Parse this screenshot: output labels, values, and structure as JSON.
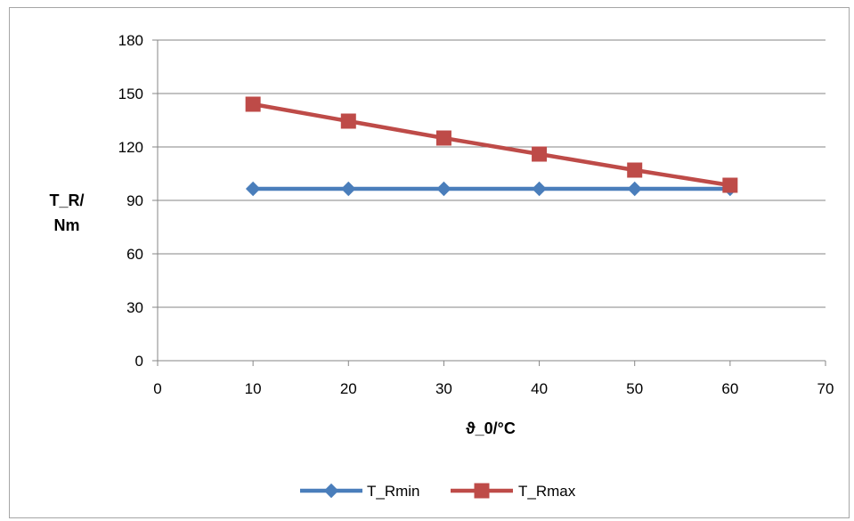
{
  "chart_data": {
    "type": "line",
    "title": "",
    "xlabel": "ϑ_0/°C",
    "ylabel": [
      "T_R/",
      "Nm"
    ],
    "xlim": [
      0,
      70
    ],
    "ylim": [
      0,
      180
    ],
    "xticks": [
      0,
      10,
      20,
      30,
      40,
      50,
      60,
      70
    ],
    "yticks": [
      0,
      30,
      60,
      90,
      120,
      150,
      180
    ],
    "grid": "horizontal",
    "legend_position": "bottom",
    "x": [
      10,
      20,
      30,
      40,
      50,
      60
    ],
    "series": [
      {
        "name": "T_Rmin",
        "values": [
          96.5,
          96.5,
          96.5,
          96.5,
          96.5,
          96.5
        ],
        "color": "#4a7ebb",
        "marker": "diamond"
      },
      {
        "name": "T_Rmax",
        "values": [
          144,
          134.5,
          125,
          116,
          107,
          98.5
        ],
        "color": "#be4b48",
        "marker": "square"
      }
    ]
  }
}
